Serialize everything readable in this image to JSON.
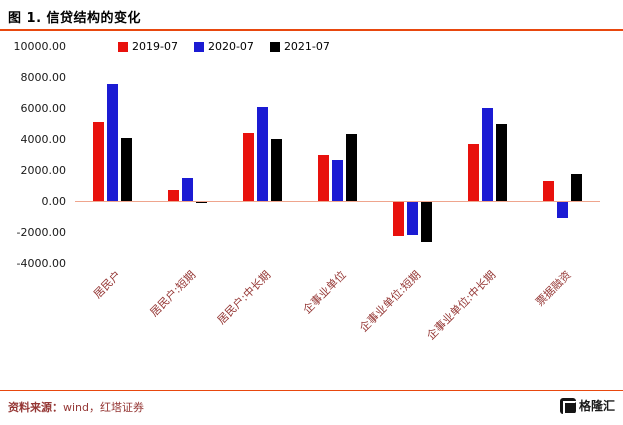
{
  "header": {
    "title": "图 1. 信贷结构的变化"
  },
  "footer": {
    "source_label": "资料来源：",
    "source_text": "wind，红塔证券",
    "logo_text": "格隆汇"
  },
  "colors": {
    "divider": "#e8480e",
    "zero_line": "#efa58d",
    "x_label": "#953735",
    "series_red": "#e8110d",
    "series_blue": "#1b1bd3",
    "series_black": "#000000"
  },
  "chart_data": {
    "type": "bar",
    "title": "信贷结构的变化",
    "xlabel": "",
    "ylabel": "",
    "grid": false,
    "legend_position": "top",
    "ylim": [
      -4000,
      10000
    ],
    "yticks": [
      "10000.00",
      "8000.00",
      "6000.00",
      "4000.00",
      "2000.00",
      "0.00",
      "-2000.00",
      "-4000.00"
    ],
    "categories": [
      "居民户",
      "居民户:短期",
      "居民户:中长期",
      "企事业单位",
      "企事业单位:短期",
      "企事业单位:中长期",
      "票据融资"
    ],
    "series": [
      {
        "name": "2019-07",
        "color": "#e8110d",
        "values": [
          5112,
          695,
          4417,
          2974,
          -2195,
          3678,
          1284
        ]
      },
      {
        "name": "2020-07",
        "color": "#1b1bd3",
        "values": [
          7578,
          1510,
          6067,
          2645,
          -2100,
          5968,
          -1021
        ]
      },
      {
        "name": "2021-07",
        "color": "#000000",
        "values": [
          4059,
          -85,
          3974,
          4334,
          -2577,
          4937,
          1771
        ]
      }
    ]
  }
}
